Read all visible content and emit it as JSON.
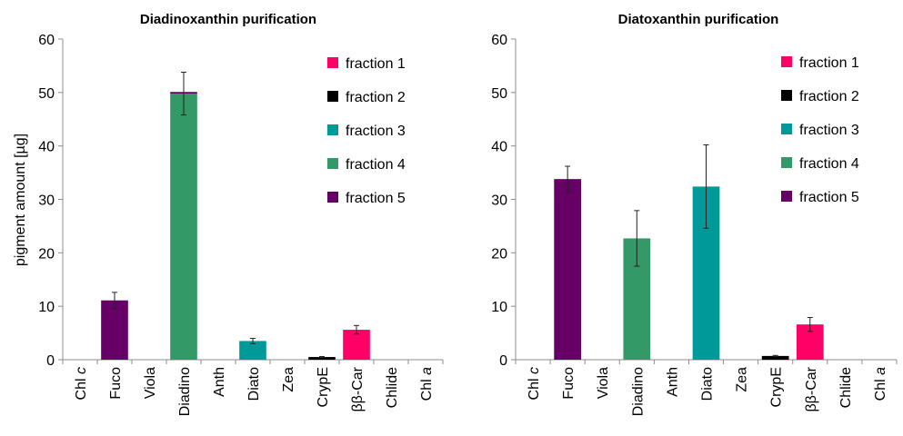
{
  "chart_data": [
    {
      "type": "bar",
      "title": "Diadinoxanthin purification",
      "ylabel": "pigment amount [µg]",
      "xlabel": "",
      "ylim": [
        0,
        60
      ],
      "yticks": [
        0,
        10,
        20,
        30,
        40,
        50,
        60
      ],
      "categories": [
        {
          "text": "Chl ",
          "italic": "c"
        },
        {
          "text": "Fuco",
          "italic": ""
        },
        {
          "text": "Viola",
          "italic": ""
        },
        {
          "text": "Diadino",
          "italic": ""
        },
        {
          "text": "Anth",
          "italic": ""
        },
        {
          "text": "Diato",
          "italic": ""
        },
        {
          "text": "Zea",
          "italic": ""
        },
        {
          "text": "CrypE",
          "italic": ""
        },
        {
          "text": "ββ-Car",
          "italic": ""
        },
        {
          "text": "Chlide",
          "italic": ""
        },
        {
          "text": "Chl ",
          "italic": "a"
        }
      ],
      "legend_position": "top-right",
      "series": [
        {
          "name": "fraction 1",
          "color": "#ff0066",
          "values": [
            0,
            0,
            0,
            0,
            0,
            0,
            0,
            0,
            5.6,
            0,
            0
          ],
          "errors": [
            0,
            0,
            0,
            0,
            0,
            0,
            0,
            0,
            0.8,
            0,
            0
          ]
        },
        {
          "name": "fraction 2",
          "color": "#000000",
          "values": [
            0,
            0,
            0,
            0,
            0,
            0,
            0,
            0.5,
            0,
            0,
            0
          ],
          "errors": [
            0,
            0,
            0,
            0,
            0,
            0,
            0,
            0.1,
            0,
            0,
            0
          ]
        },
        {
          "name": "fraction 3",
          "color": "#009999",
          "values": [
            0,
            0,
            0,
            0,
            0,
            3.5,
            0,
            0,
            0,
            0,
            0
          ],
          "errors": [
            0,
            0,
            0,
            0,
            0,
            0.5,
            0,
            0,
            0,
            0,
            0
          ]
        },
        {
          "name": "fraction 4",
          "color": "#339966",
          "values": [
            0,
            0,
            0,
            49.8,
            0,
            0,
            0,
            0,
            0,
            0,
            0
          ],
          "errors": [
            0,
            0,
            0,
            4.0,
            0,
            0,
            0,
            0,
            0,
            0,
            0
          ]
        },
        {
          "name": "fraction 5",
          "color": "#660066",
          "values": [
            0,
            11.1,
            0,
            0.3,
            0,
            0,
            0,
            0,
            0,
            0,
            0
          ],
          "errors": [
            0,
            1.5,
            0,
            0,
            0,
            0,
            0,
            0,
            0,
            0,
            0
          ]
        }
      ]
    },
    {
      "type": "bar",
      "title": "Diatoxanthin purification",
      "ylabel": "",
      "xlabel": "",
      "ylim": [
        0,
        60
      ],
      "yticks": [
        0,
        10,
        20,
        30,
        40,
        50,
        60
      ],
      "categories": [
        {
          "text": "Chl ",
          "italic": "c"
        },
        {
          "text": "Fuco",
          "italic": ""
        },
        {
          "text": "Viola",
          "italic": ""
        },
        {
          "text": "Diadino",
          "italic": ""
        },
        {
          "text": "Anth",
          "italic": ""
        },
        {
          "text": "Diato",
          "italic": ""
        },
        {
          "text": "Zea",
          "italic": ""
        },
        {
          "text": "CrypE",
          "italic": ""
        },
        {
          "text": "ββ-Car",
          "italic": ""
        },
        {
          "text": "Chlide",
          "italic": ""
        },
        {
          "text": "Chl ",
          "italic": "a"
        }
      ],
      "legend_position": "top-right",
      "series": [
        {
          "name": "fraction 1",
          "color": "#ff0066",
          "values": [
            0,
            0,
            0,
            0,
            0,
            0,
            0,
            0,
            6.6,
            0,
            0
          ],
          "errors": [
            0,
            0,
            0,
            0,
            0,
            0,
            0,
            0,
            1.3,
            0,
            0
          ]
        },
        {
          "name": "fraction 2",
          "color": "#000000",
          "values": [
            0,
            0,
            0,
            0,
            0,
            0,
            0,
            0.7,
            0,
            0,
            0
          ],
          "errors": [
            0,
            0,
            0,
            0,
            0,
            0,
            0,
            0.1,
            0,
            0,
            0
          ]
        },
        {
          "name": "fraction 3",
          "color": "#009999",
          "values": [
            0,
            0,
            0,
            0,
            0,
            32.4,
            0,
            0,
            0,
            0,
            0
          ],
          "errors": [
            0,
            0,
            0,
            0,
            0,
            7.8,
            0,
            0,
            0,
            0,
            0
          ]
        },
        {
          "name": "fraction 4",
          "color": "#339966",
          "values": [
            0,
            0,
            0,
            22.7,
            0,
            0,
            0,
            0,
            0,
            0,
            0
          ],
          "errors": [
            0,
            0,
            0,
            5.2,
            0,
            0,
            0,
            0,
            0,
            0,
            0
          ]
        },
        {
          "name": "fraction 5",
          "color": "#660066",
          "values": [
            0,
            33.8,
            0,
            0,
            0,
            0,
            0,
            0,
            0,
            0,
            0
          ],
          "errors": [
            0,
            2.4,
            0,
            0,
            0,
            0,
            0,
            0,
            0,
            0,
            0
          ]
        }
      ]
    }
  ]
}
